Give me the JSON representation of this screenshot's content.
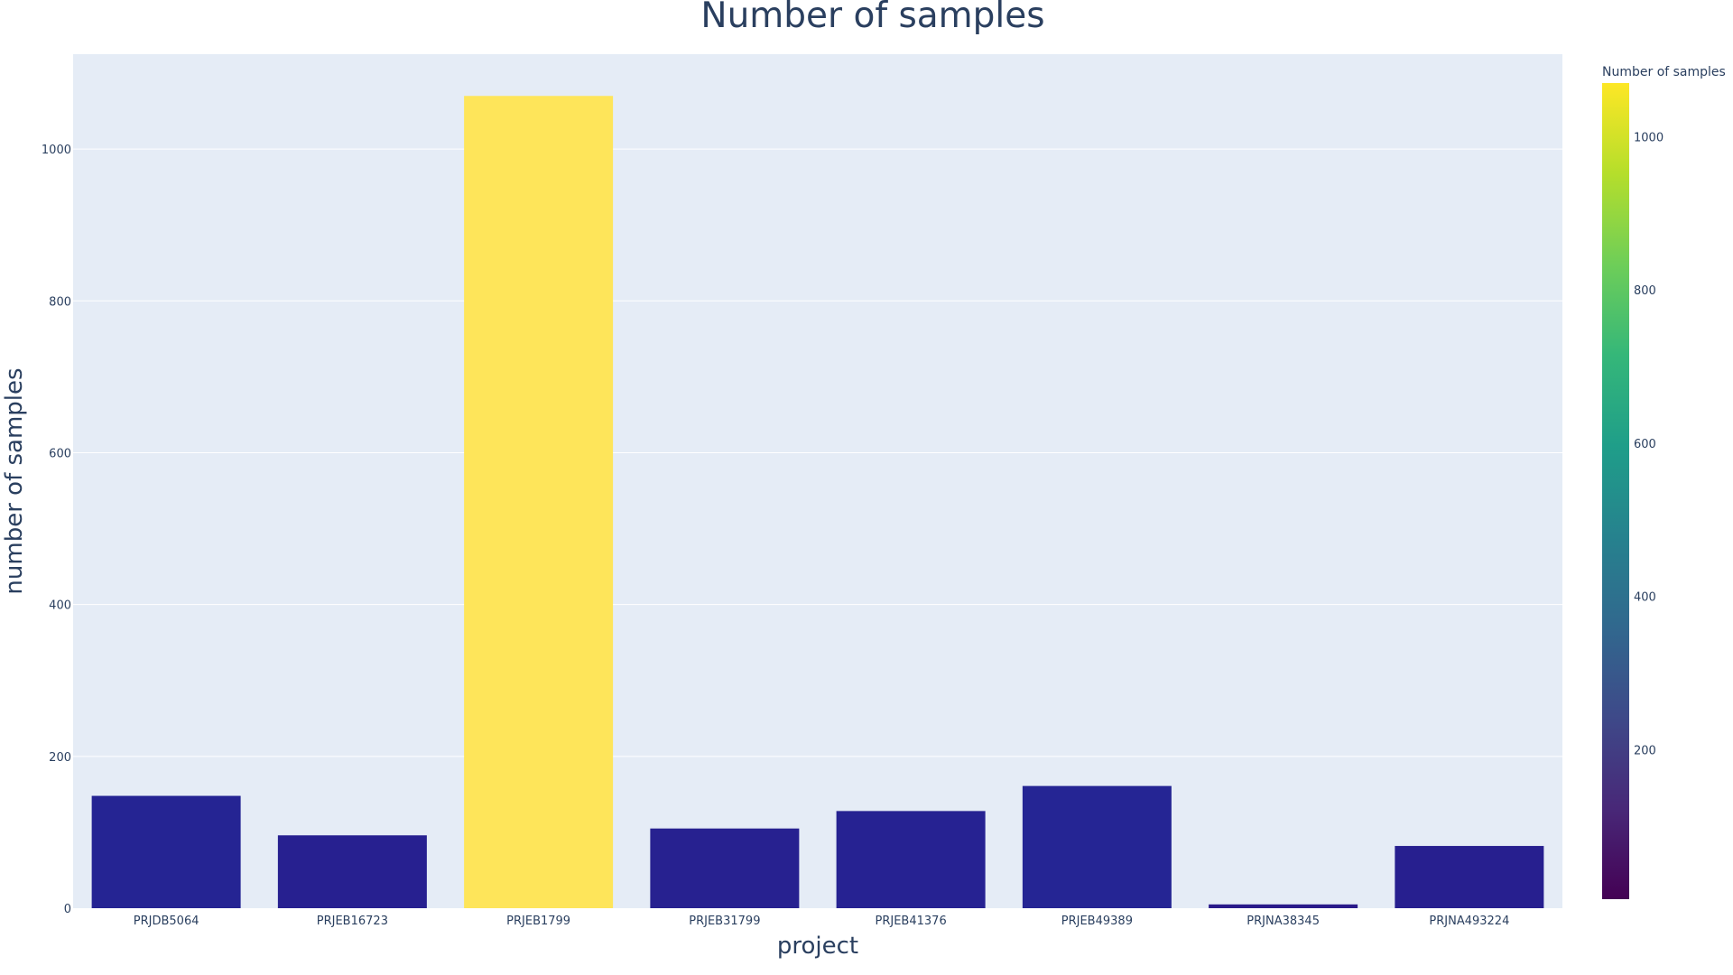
{
  "chart_data": {
    "type": "bar",
    "title": "Number of samples",
    "xlabel": "project",
    "ylabel": "number of samples",
    "categories": [
      "PRJDB5064",
      "PRJEB16723",
      "PRJEB1799",
      "PRJEB31799",
      "PRJEB41376",
      "PRJEB49389",
      "PRJNA38345",
      "PRJNA493224"
    ],
    "values": [
      148,
      96,
      1070,
      105,
      128,
      161,
      5,
      82
    ],
    "ylim": [
      0,
      1125
    ],
    "yticks": [
      0,
      200,
      400,
      600,
      800,
      1000
    ],
    "grid": true,
    "colorbar": {
      "title": "Number of samples",
      "range": [
        5,
        1070
      ],
      "ticks": [
        200,
        400,
        600,
        800,
        1000
      ],
      "colorscale": [
        "#440154",
        "#482878",
        "#3e4989",
        "#31688e",
        "#26828e",
        "#1f9e89",
        "#35b779",
        "#6ece58",
        "#b5de2b",
        "#fde725"
      ]
    },
    "colors": {
      "plot_bg": "#e5ecf6",
      "grid": "#ffffff",
      "text": "#2a3f5f",
      "bar_low": "#2a1a8a",
      "bar_high": "#fee55a"
    }
  }
}
